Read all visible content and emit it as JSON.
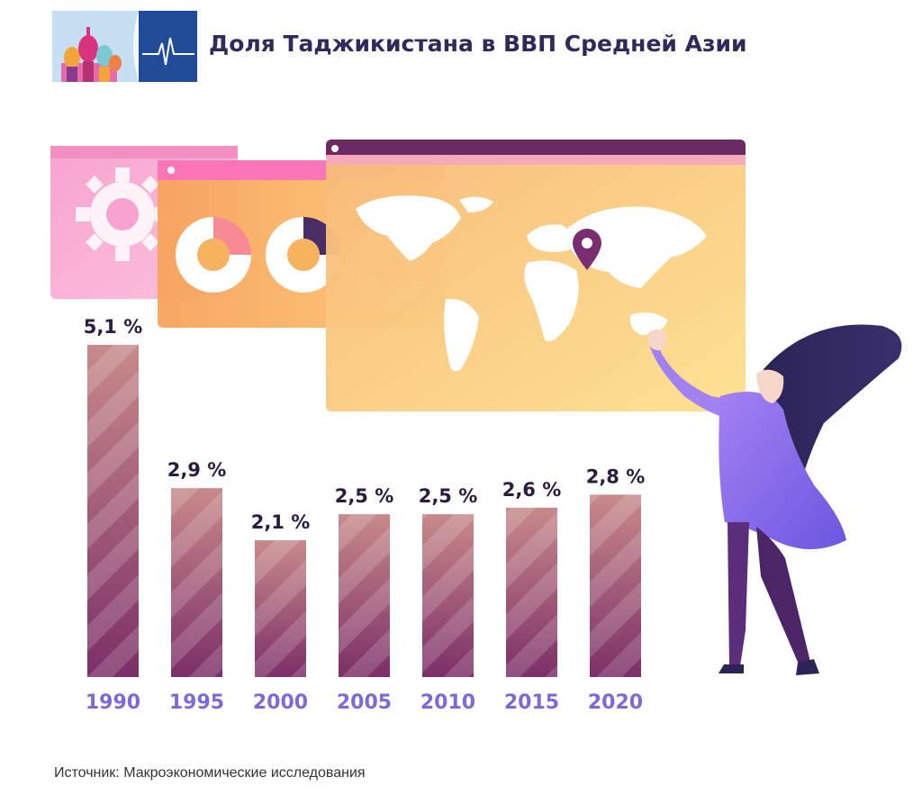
{
  "header": {
    "title": "Доля Таджикистана в ВВП Средней Азии"
  },
  "source": "Источник: Макроэкономические исследования",
  "colors": {
    "bar_top": "#c88a8a",
    "bar_bottom": "#7c2f68",
    "value_label": "#2b1c3f",
    "year_label": "#7b6bd8",
    "title": "#2e2a5c"
  },
  "chart_data": {
    "type": "bar",
    "categories": [
      "1990",
      "1995",
      "2000",
      "2005",
      "2010",
      "2015",
      "2020"
    ],
    "values": [
      5.1,
      2.9,
      2.1,
      2.5,
      2.5,
      2.6,
      2.8
    ],
    "value_labels": [
      "5,1 %",
      "2,9 %",
      "2,1 %",
      "2,5 %",
      "2,5 %",
      "2,6 %",
      "2,8 %"
    ],
    "unit": "%",
    "ylim": [
      0,
      5.1
    ],
    "grid": false,
    "legend": "none"
  }
}
